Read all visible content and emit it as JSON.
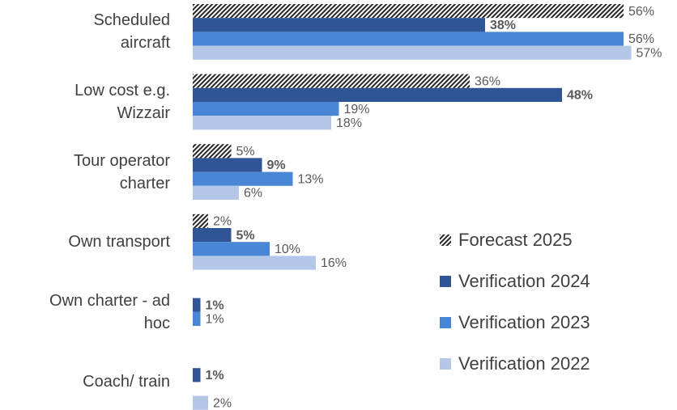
{
  "chart_data": {
    "type": "hbar",
    "categories": [
      "Scheduled aircraft",
      "Low cost e.g. Wizzair",
      "Tour operator charter",
      "Own transport",
      "Own charter - ad hoc",
      "Coach/ train"
    ],
    "series": [
      {
        "name": "Forecast 2025",
        "color": "#262626",
        "pattern": "hatch",
        "values": [
          56,
          36,
          5,
          2,
          null,
          null
        ],
        "value_labels": [
          "56%",
          "36%",
          "5%",
          "2%",
          null,
          null
        ]
      },
      {
        "name": "Verification 2024",
        "color": "#2f5597",
        "bold_labels": true,
        "values": [
          38,
          48,
          9,
          5,
          1,
          1
        ],
        "value_labels": [
          "38%",
          "48%",
          "9%",
          "5%",
          "1%",
          "1%"
        ]
      },
      {
        "name": "Verification 2023",
        "color": "#4a86d6",
        "values": [
          56,
          19,
          13,
          10,
          1,
          null
        ],
        "value_labels": [
          "56%",
          "19%",
          "13%",
          "10%",
          "1%",
          null
        ]
      },
      {
        "name": "Verification 2022",
        "color": "#b4c7e7",
        "values": [
          57,
          18,
          6,
          16,
          null,
          2
        ],
        "value_labels": [
          "57%",
          "18%",
          "6%",
          "16%",
          null,
          "2%"
        ]
      }
    ]
  }
}
